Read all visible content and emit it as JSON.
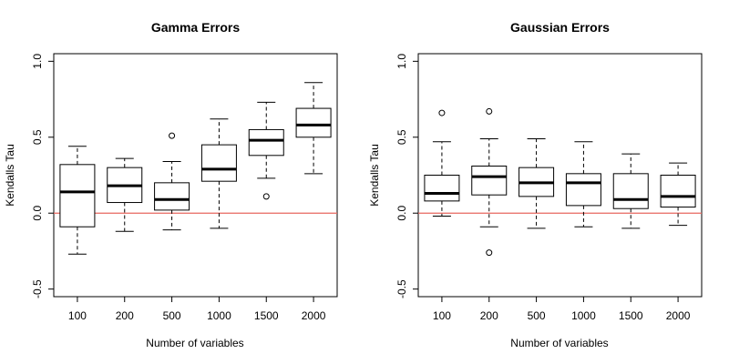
{
  "chart_data": [
    {
      "type": "box",
      "title": "Gamma Errors",
      "xlabel": "Number of variables",
      "ylabel": "Kendalls Tau",
      "ylim": [
        -0.55,
        1.05
      ],
      "yticks": [
        "-0.5",
        "0.0",
        "0.5",
        "1.0"
      ],
      "reference_line": {
        "y": 0.0,
        "color": "#e8675f"
      },
      "categories": [
        "100",
        "200",
        "500",
        "1000",
        "1500",
        "2000"
      ],
      "boxes": [
        {
          "whisker_low": -0.27,
          "q1": -0.09,
          "median": 0.14,
          "q3": 0.32,
          "whisker_high": 0.44,
          "outliers": []
        },
        {
          "whisker_low": -0.12,
          "q1": 0.07,
          "median": 0.18,
          "q3": 0.3,
          "whisker_high": 0.36,
          "outliers": []
        },
        {
          "whisker_low": -0.11,
          "q1": 0.02,
          "median": 0.09,
          "q3": 0.2,
          "whisker_high": 0.34,
          "outliers": [
            0.51
          ]
        },
        {
          "whisker_low": -0.1,
          "q1": 0.21,
          "median": 0.29,
          "q3": 0.45,
          "whisker_high": 0.62,
          "outliers": []
        },
        {
          "whisker_low": 0.23,
          "q1": 0.38,
          "median": 0.48,
          "q3": 0.55,
          "whisker_high": 0.73,
          "outliers": [
            0.11
          ]
        },
        {
          "whisker_low": 0.26,
          "q1": 0.5,
          "median": 0.58,
          "q3": 0.69,
          "whisker_high": 0.86,
          "outliers": []
        }
      ]
    },
    {
      "type": "box",
      "title": "Gaussian Errors",
      "xlabel": "Number of variables",
      "ylabel": "Kendalls Tau",
      "ylim": [
        -0.55,
        1.05
      ],
      "yticks": [
        "-0.5",
        "0.0",
        "0.5",
        "1.0"
      ],
      "reference_line": {
        "y": 0.0,
        "color": "#e8675f"
      },
      "categories": [
        "100",
        "200",
        "500",
        "1000",
        "1500",
        "2000"
      ],
      "boxes": [
        {
          "whisker_low": -0.02,
          "q1": 0.08,
          "median": 0.13,
          "q3": 0.25,
          "whisker_high": 0.47,
          "outliers": [
            0.66
          ]
        },
        {
          "whisker_low": -0.09,
          "q1": 0.12,
          "median": 0.24,
          "q3": 0.31,
          "whisker_high": 0.49,
          "outliers": [
            0.67,
            -0.26
          ]
        },
        {
          "whisker_low": -0.1,
          "q1": 0.11,
          "median": 0.2,
          "q3": 0.3,
          "whisker_high": 0.49,
          "outliers": []
        },
        {
          "whisker_low": -0.09,
          "q1": 0.05,
          "median": 0.2,
          "q3": 0.26,
          "whisker_high": 0.47,
          "outliers": []
        },
        {
          "whisker_low": -0.1,
          "q1": 0.03,
          "median": 0.09,
          "q3": 0.26,
          "whisker_high": 0.39,
          "outliers": []
        },
        {
          "whisker_low": -0.08,
          "q1": 0.04,
          "median": 0.11,
          "q3": 0.25,
          "whisker_high": 0.33,
          "outliers": []
        }
      ]
    }
  ]
}
